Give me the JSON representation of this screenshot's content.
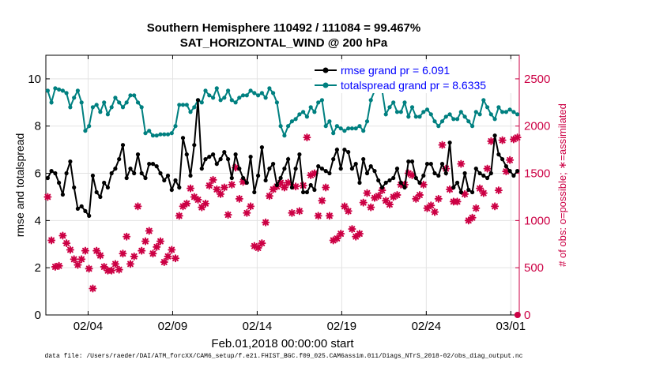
{
  "chart_data": {
    "type": "line",
    "title_line1": "Southern Hemisphere 110492 / 111084 = 99.467%",
    "title_line2": "SAT_HORIZONTAL_WIND @ 200 hPa",
    "xlabel": "Feb.01,2018 00:00:00 start",
    "ylabel_left": "rmse and totalspread",
    "ylabel_right": "# of obs: o=possible; ∗=assimilated",
    "footer": "data file: /Users/raeder/DAI/ATM_forcXX/CAM6_setup/f.e21.FHIST_BGC.f09_025.CAM6assim.011/Diags_NTrS_2018-02/obs_diag_output.nc",
    "xlim": [
      0,
      28
    ],
    "ylim_left": [
      0,
      11
    ],
    "ylim_right": [
      0,
      2750
    ],
    "x_ticks": [
      2.5,
      7.5,
      12.5,
      17.5,
      22.5,
      27.5
    ],
    "x_tick_labels": [
      "02/04",
      "02/09",
      "02/14",
      "02/19",
      "02/24",
      "03/01"
    ],
    "y_ticks_left": [
      0,
      2,
      4,
      6,
      8,
      10
    ],
    "y_ticks_right": [
      0,
      500,
      1000,
      1500,
      2000,
      2500
    ],
    "grid": true,
    "legend_location": "top-right",
    "colors": {
      "rmse": "#000000",
      "spread": "#008080",
      "obs": "#cc0044",
      "legend_text": "#0000ff"
    },
    "series": [
      {
        "name": "rmse grand pr = 6.091",
        "axis": "left",
        "marker": "filled-circle",
        "values": [
          5.8,
          6.1,
          6.0,
          5.6,
          5.1,
          6.0,
          6.5,
          5.4,
          4.5,
          4.6,
          4.4,
          4.2,
          5.9,
          5.2,
          5.0,
          5.6,
          5.4,
          6.0,
          6.2,
          6.6,
          7.2,
          5.8,
          6.2,
          6.0,
          6.8,
          6.0,
          5.8,
          6.4,
          6.4,
          6.3,
          6.0,
          5.7,
          5.9,
          5.3,
          5.7,
          5.4,
          7.5,
          6.8,
          5.9,
          7.2,
          9.1,
          6.2,
          6.6,
          6.7,
          6.8,
          6.4,
          6.6,
          6.9,
          6.6,
          5.8,
          6.8,
          6.2,
          5.8,
          5.6,
          6.7,
          5.2,
          5.9,
          7.1,
          5.7,
          6.2,
          6.4,
          5.5,
          5.8,
          6.2,
          6.6,
          5.4,
          6.2,
          6.8,
          5.2,
          5.2,
          5.5,
          5.3,
          6.3,
          6.2,
          6.1,
          6.0,
          6.6,
          7.0,
          6.2,
          7.0,
          6.9,
          6.2,
          6.4,
          5.6,
          6.6,
          6.0,
          6.3,
          6.1,
          5.7,
          5.4,
          5.6,
          5.7,
          5.8,
          6.2,
          5.6,
          5.4,
          6.5,
          6.5,
          5.8,
          5.6,
          5.9,
          6.4,
          6.4,
          6.0,
          5.9,
          6.4,
          6.0,
          7.3,
          5.4,
          5.6,
          5.2,
          6.0,
          5.3,
          5.2,
          6.2,
          6.0,
          5.9,
          5.8,
          6.0,
          7.6,
          6.8,
          6.6,
          6.3,
          6.1,
          5.9,
          6.1
        ]
      },
      {
        "name": "totalspread grand pr = 8.6335",
        "axis": "left",
        "marker": "filled-circle",
        "values": [
          9.5,
          9.0,
          9.6,
          9.55,
          9.5,
          9.4,
          8.8,
          9.2,
          9.5,
          9.0,
          7.8,
          8.0,
          8.8,
          8.9,
          8.6,
          9.0,
          8.5,
          8.8,
          9.2,
          9.0,
          8.8,
          9.0,
          9.3,
          9.3,
          9.0,
          8.8,
          7.7,
          7.8,
          7.6,
          7.6,
          7.65,
          7.65,
          7.65,
          7.7,
          8.0,
          8.9,
          8.9,
          8.9,
          8.6,
          8.8,
          9.1,
          9.0,
          9.5,
          9.3,
          9.2,
          9.6,
          9.1,
          9.2,
          9.5,
          9.1,
          9.0,
          9.2,
          9.3,
          9.3,
          9.5,
          9.4,
          9.3,
          9.4,
          9.2,
          9.6,
          9.4,
          9.0,
          8.0,
          7.6,
          8.0,
          8.2,
          8.3,
          8.5,
          8.6,
          8.4,
          8.8,
          8.6,
          9.0,
          9.1,
          8.0,
          8.2,
          7.7,
          8.0,
          7.9,
          7.8,
          7.9,
          7.9,
          7.9,
          8.0,
          7.8,
          8.2,
          9.1,
          9.5,
          9.6,
          9.5,
          8.5,
          8.8,
          9.0,
          8.6,
          8.6,
          9.0,
          8.4,
          8.8,
          8.4,
          8.4,
          8.6,
          8.7,
          8.5,
          8.2,
          8.0,
          8.2,
          8.4,
          8.5,
          8.3,
          8.3,
          8.6,
          8.4,
          8.2,
          8.0,
          8.6,
          8.5,
          9.1,
          8.8,
          8.5,
          8.3,
          8.8,
          8.6,
          8.6,
          8.7,
          8.6,
          8.5
        ]
      },
      {
        "name": "# obs assimilated",
        "axis": "right",
        "marker": "asterisk",
        "values": [
          1250,
          790,
          510,
          520,
          840,
          760,
          690,
          590,
          530,
          590,
          680,
          490,
          280,
          680,
          630,
          510,
          470,
          470,
          540,
          480,
          650,
          830,
          540,
          620,
          1150,
          680,
          780,
          890,
          650,
          720,
          780,
          560,
          620,
          690,
          600,
          1050,
          1150,
          1180,
          1340,
          1250,
          1220,
          1140,
          1180,
          1370,
          1430,
          1330,
          1280,
          1350,
          1060,
          1380,
          1560,
          1230,
          1410,
          1080,
          1150,
          730,
          710,
          760,
          980,
          1260,
          1330,
          1360,
          1400,
          1350,
          1400,
          1080,
          1360,
          1100,
          1370,
          1880,
          1480,
          1500,
          1050,
          1210,
          1350,
          1050,
          790,
          810,
          860,
          1150,
          1100,
          910,
          830,
          860,
          1190,
          1290,
          1140,
          1240,
          1260,
          1320,
          1210,
          1170,
          1250,
          1270,
          1380,
          1380,
          1500,
          1480,
          1230,
          1270,
          1380,
          1130,
          1160,
          1090,
          1230,
          1800,
          1550,
          1330,
          1200,
          1200,
          1600,
          1280,
          1000,
          1030,
          1130,
          1340,
          1290,
          1550,
          1840,
          1150,
          1320,
          1850,
          1520,
          1640,
          1860,
          1880
        ]
      }
    ],
    "extra_right_points": [
      {
        "x": 27.9,
        "y": 0
      }
    ]
  }
}
